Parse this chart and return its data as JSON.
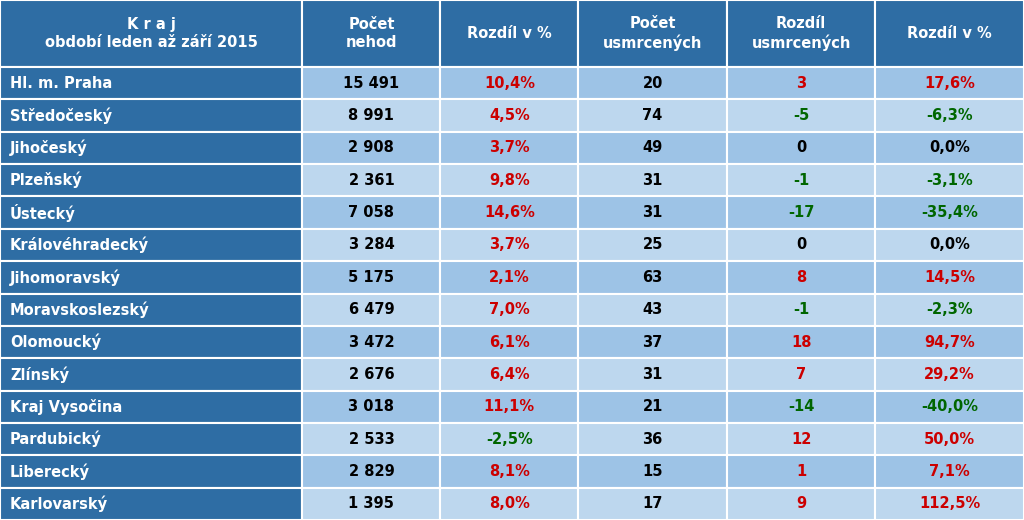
{
  "headers": [
    "K r a j\nobdobí leden až září 2015",
    "Počet\nnehod",
    "Rozdíl v %",
    "Počet\nusmrcených",
    "Rozdíl\nusmrcených",
    "Rozdíl v %"
  ],
  "rows": [
    [
      "Hl. m. Praha",
      "15 491",
      "10,4%",
      "20",
      "3",
      "17,6%"
    ],
    [
      "Středočeský",
      "8 991",
      "4,5%",
      "74",
      "-5",
      "-6,3%"
    ],
    [
      "Jihočeský",
      "2 908",
      "3,7%",
      "49",
      "0",
      "0,0%"
    ],
    [
      "Plzeňský",
      "2 361",
      "9,8%",
      "31",
      "-1",
      "-3,1%"
    ],
    [
      "Ústecký",
      "7 058",
      "14,6%",
      "31",
      "-17",
      "-35,4%"
    ],
    [
      "Královéhradecký",
      "3 284",
      "3,7%",
      "25",
      "0",
      "0,0%"
    ],
    [
      "Jihomoravský",
      "5 175",
      "2,1%",
      "63",
      "8",
      "14,5%"
    ],
    [
      "Moravskoslezský",
      "6 479",
      "7,0%",
      "43",
      "-1",
      "-2,3%"
    ],
    [
      "Olomoucký",
      "3 472",
      "6,1%",
      "37",
      "18",
      "94,7%"
    ],
    [
      "Zlínský",
      "2 676",
      "6,4%",
      "31",
      "7",
      "29,2%"
    ],
    [
      "Kraj Vysočina",
      "3 018",
      "11,1%",
      "21",
      "-14",
      "-40,0%"
    ],
    [
      "Pardubický",
      "2 533",
      "-2,5%",
      "36",
      "12",
      "50,0%"
    ],
    [
      "Liberecký",
      "2 829",
      "8,1%",
      "15",
      "1",
      "7,1%"
    ],
    [
      "Karlovarský",
      "1 395",
      "8,0%",
      "17",
      "9",
      "112,5%"
    ]
  ],
  "col2_colors": [
    "#CC0000",
    "#CC0000",
    "#CC0000",
    "#CC0000",
    "#CC0000",
    "#CC0000",
    "#CC0000",
    "#CC0000",
    "#CC0000",
    "#CC0000",
    "#CC0000",
    "#006600",
    "#CC0000",
    "#CC0000"
  ],
  "col4_colors": [
    "#CC0000",
    "#006600",
    "#000000",
    "#006600",
    "#006600",
    "#000000",
    "#CC0000",
    "#006600",
    "#CC0000",
    "#CC0000",
    "#006600",
    "#CC0000",
    "#CC0000",
    "#CC0000"
  ],
  "col5_colors": [
    "#CC0000",
    "#006600",
    "#000000",
    "#006600",
    "#006600",
    "#000000",
    "#CC0000",
    "#006600",
    "#CC0000",
    "#CC0000",
    "#006600",
    "#CC0000",
    "#CC0000",
    "#CC0000"
  ],
  "col1_dark_rows": [
    0,
    2,
    4,
    6,
    8,
    10,
    12
  ],
  "col1_light_rows": [
    1,
    3,
    5,
    7,
    9,
    11,
    13
  ],
  "header_bg": "#2E6DA4",
  "col0_bg": "#2E6DA4",
  "col0_text": "#FFFFFF",
  "col1_dark_bg": "#9DC3E6",
  "col1_light_bg": "#BDD7EE",
  "col_rest_dark_bg": "#9DC3E6",
  "col_rest_light_bg": "#BDD7EE",
  "header_text": "#FFFFFF",
  "data_text": "#000000",
  "border_color": "#FFFFFF",
  "fig_bg": "#FFFFFF"
}
